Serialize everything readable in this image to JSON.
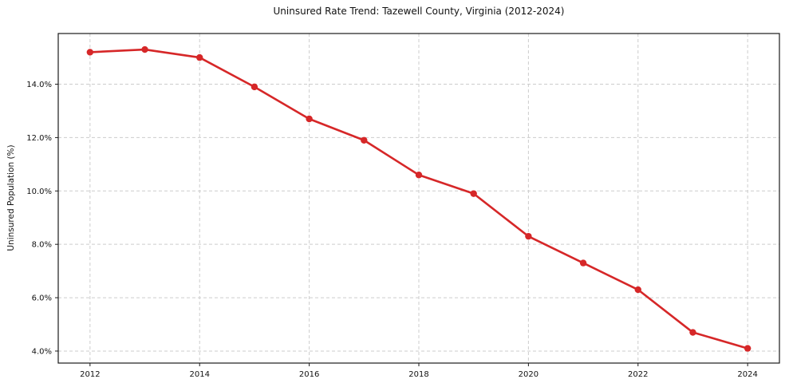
{
  "chart_data": {
    "type": "line",
    "title": "Uninsured Rate Trend: Tazewell County, Virginia (2012-2024)",
    "xlabel": "",
    "ylabel": "Uninsured Population (%)",
    "x": [
      2012,
      2013,
      2014,
      2015,
      2016,
      2017,
      2018,
      2019,
      2020,
      2021,
      2022,
      2023,
      2024
    ],
    "series": [
      {
        "name": "Uninsured Population (%)",
        "values": [
          15.2,
          15.3,
          15.0,
          13.9,
          12.7,
          11.9,
          10.6,
          9.9,
          8.3,
          7.3,
          6.3,
          4.7,
          4.1
        ],
        "color": "#d62728",
        "marker": "circle"
      }
    ],
    "xlim": [
      2011.42,
      2024.58
    ],
    "ylim": [
      3.55,
      15.9
    ],
    "x_ticks": [
      2012,
      2014,
      2016,
      2018,
      2020,
      2022,
      2024
    ],
    "x_tick_labels": [
      "2012",
      "2014",
      "2016",
      "2018",
      "2020",
      "2022",
      "2024"
    ],
    "y_ticks": [
      4,
      6,
      8,
      10,
      12,
      14
    ],
    "y_tick_labels": [
      "4.0%",
      "6.0%",
      "8.0%",
      "10.0%",
      "12.0%",
      "14.0%"
    ],
    "grid": true,
    "legend_position": "none"
  },
  "colors": {
    "line": "#d62728",
    "grid": "#cccccc",
    "spine": "#1a1a1a",
    "text": "#111111",
    "background": "#ffffff"
  }
}
